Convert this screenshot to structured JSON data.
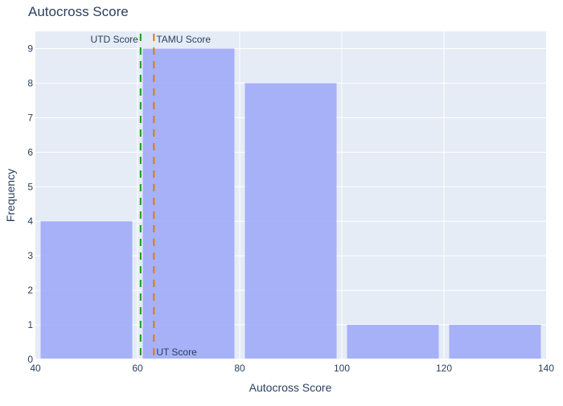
{
  "chart_data": {
    "type": "bar",
    "title": "Autocross Score",
    "xlabel": "Autocross Score",
    "ylabel": "Frequency",
    "xlim": [
      40,
      140
    ],
    "ylim": [
      0,
      9.5
    ],
    "x_ticks": [
      40,
      60,
      80,
      100,
      120,
      140
    ],
    "y_ticks": [
      0,
      1,
      2,
      3,
      4,
      5,
      6,
      7,
      8,
      9
    ],
    "grid": true,
    "legend": "none",
    "bins": [
      {
        "start": 40,
        "end": 60,
        "value": 4
      },
      {
        "start": 60,
        "end": 80,
        "value": 9
      },
      {
        "start": 80,
        "end": 100,
        "value": 8
      },
      {
        "start": 100,
        "end": 120,
        "value": 1
      },
      {
        "start": 120,
        "end": 140,
        "value": 1
      }
    ],
    "reference_lines": [
      {
        "label": "UTD Score",
        "x": 60.6,
        "color": "#1a9a1a",
        "label_position": "top-left"
      },
      {
        "label": "TAMU Score",
        "x": 63.2,
        "color": "#e07b00",
        "label_position": "top-right"
      },
      {
        "label": "UT Score",
        "x": 63.2,
        "color": "#ff2a2a",
        "label_position": "bottom-right"
      }
    ],
    "colors": {
      "bar": "#a3aef8",
      "plot_bg": "#e5ecf6",
      "grid": "#ffffff",
      "text": "#2a3f5f"
    }
  }
}
